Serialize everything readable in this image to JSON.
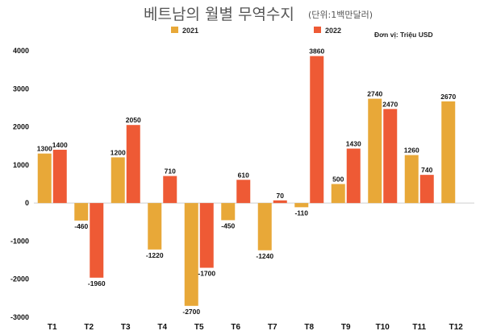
{
  "chart_data": {
    "type": "bar",
    "title": "베트남의 월별 무역수지",
    "subtitle": "(단위:1백만달러)",
    "unit_note": "Đơn vị: Triệu USD",
    "categories": [
      "T1",
      "T2",
      "T3",
      "T4",
      "T5",
      "T6",
      "T7",
      "T8",
      "T9",
      "T10",
      "T11",
      "T12"
    ],
    "series": [
      {
        "name": "2021",
        "color": "#E8A838",
        "values": [
          1300,
          -460,
          1200,
          -1220,
          -2700,
          -450,
          -1240,
          -110,
          500,
          2740,
          1260,
          2670
        ]
      },
      {
        "name": "2022",
        "color": "#EE5A35",
        "values": [
          1400,
          -1960,
          2050,
          710,
          -1700,
          610,
          70,
          3860,
          1430,
          2470,
          740,
          null
        ]
      }
    ],
    "ylim": [
      -3000,
      4000
    ],
    "yticks": [
      4000,
      3000,
      2000,
      1000,
      0,
      -1000,
      -2000,
      -3000
    ],
    "xlabel": "",
    "ylabel": "",
    "grid": false,
    "legend_position": "top"
  }
}
